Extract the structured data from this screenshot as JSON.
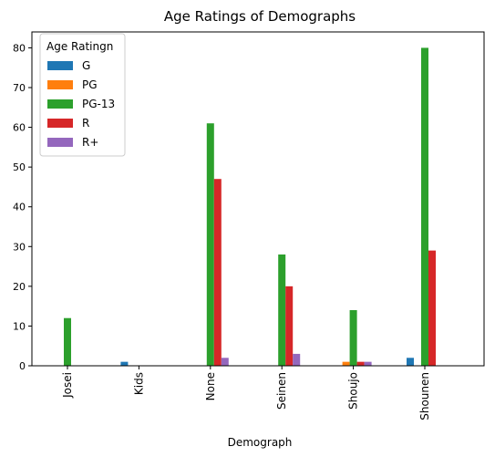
{
  "chart_data": {
    "type": "bar",
    "title": "Age Ratings of Demographs",
    "xlabel": "Demograph",
    "ylabel": "",
    "ylim": [
      0,
      84
    ],
    "yticks": [
      0,
      10,
      20,
      30,
      40,
      50,
      60,
      70,
      80
    ],
    "grid": false,
    "legend": {
      "title": "Age Ratingn",
      "placement": "top-left"
    },
    "categories": [
      "Josei",
      "Kids",
      "None",
      "Seinen",
      "Shoujo",
      "Shounen"
    ],
    "series": [
      {
        "name": "G",
        "color": "#1f77b4",
        "values": [
          0,
          1,
          0,
          0,
          0,
          2
        ]
      },
      {
        "name": "PG",
        "color": "#ff7f0e",
        "values": [
          0,
          0,
          0,
          0,
          1,
          0
        ]
      },
      {
        "name": "PG-13",
        "color": "#2ca02c",
        "values": [
          12,
          0,
          61,
          28,
          14,
          80
        ]
      },
      {
        "name": "R",
        "color": "#d62728",
        "values": [
          0,
          0,
          47,
          20,
          1,
          29
        ]
      },
      {
        "name": "R+",
        "color": "#9467bd",
        "values": [
          0,
          0,
          2,
          3,
          1,
          0
        ]
      }
    ]
  }
}
